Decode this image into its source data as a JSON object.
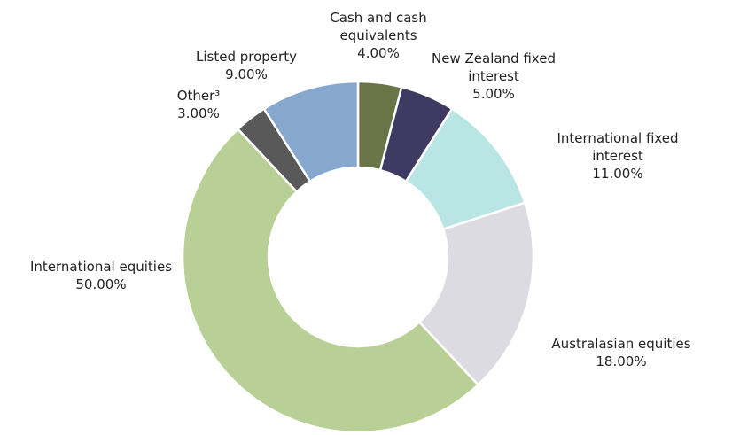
{
  "chart_data": {
    "type": "donut",
    "categories": [
      "Cash and cash equivalents",
      "New Zealand fixed interest",
      "International fixed interest",
      "Australasian equities",
      "International equities",
      "Other³",
      "Listed property"
    ],
    "values": [
      4,
      5,
      11,
      18,
      50,
      3,
      9
    ],
    "value_labels": [
      "4.00%",
      "5.00%",
      "11.00%",
      "18.00%",
      "50.00%",
      "3.00%",
      "9.00%"
    ],
    "colors": [
      "#6b7447",
      "#3f3a62",
      "#b9e5e4",
      "#dddbe2",
      "#b8d095",
      "#595959",
      "#86a8cf"
    ]
  }
}
